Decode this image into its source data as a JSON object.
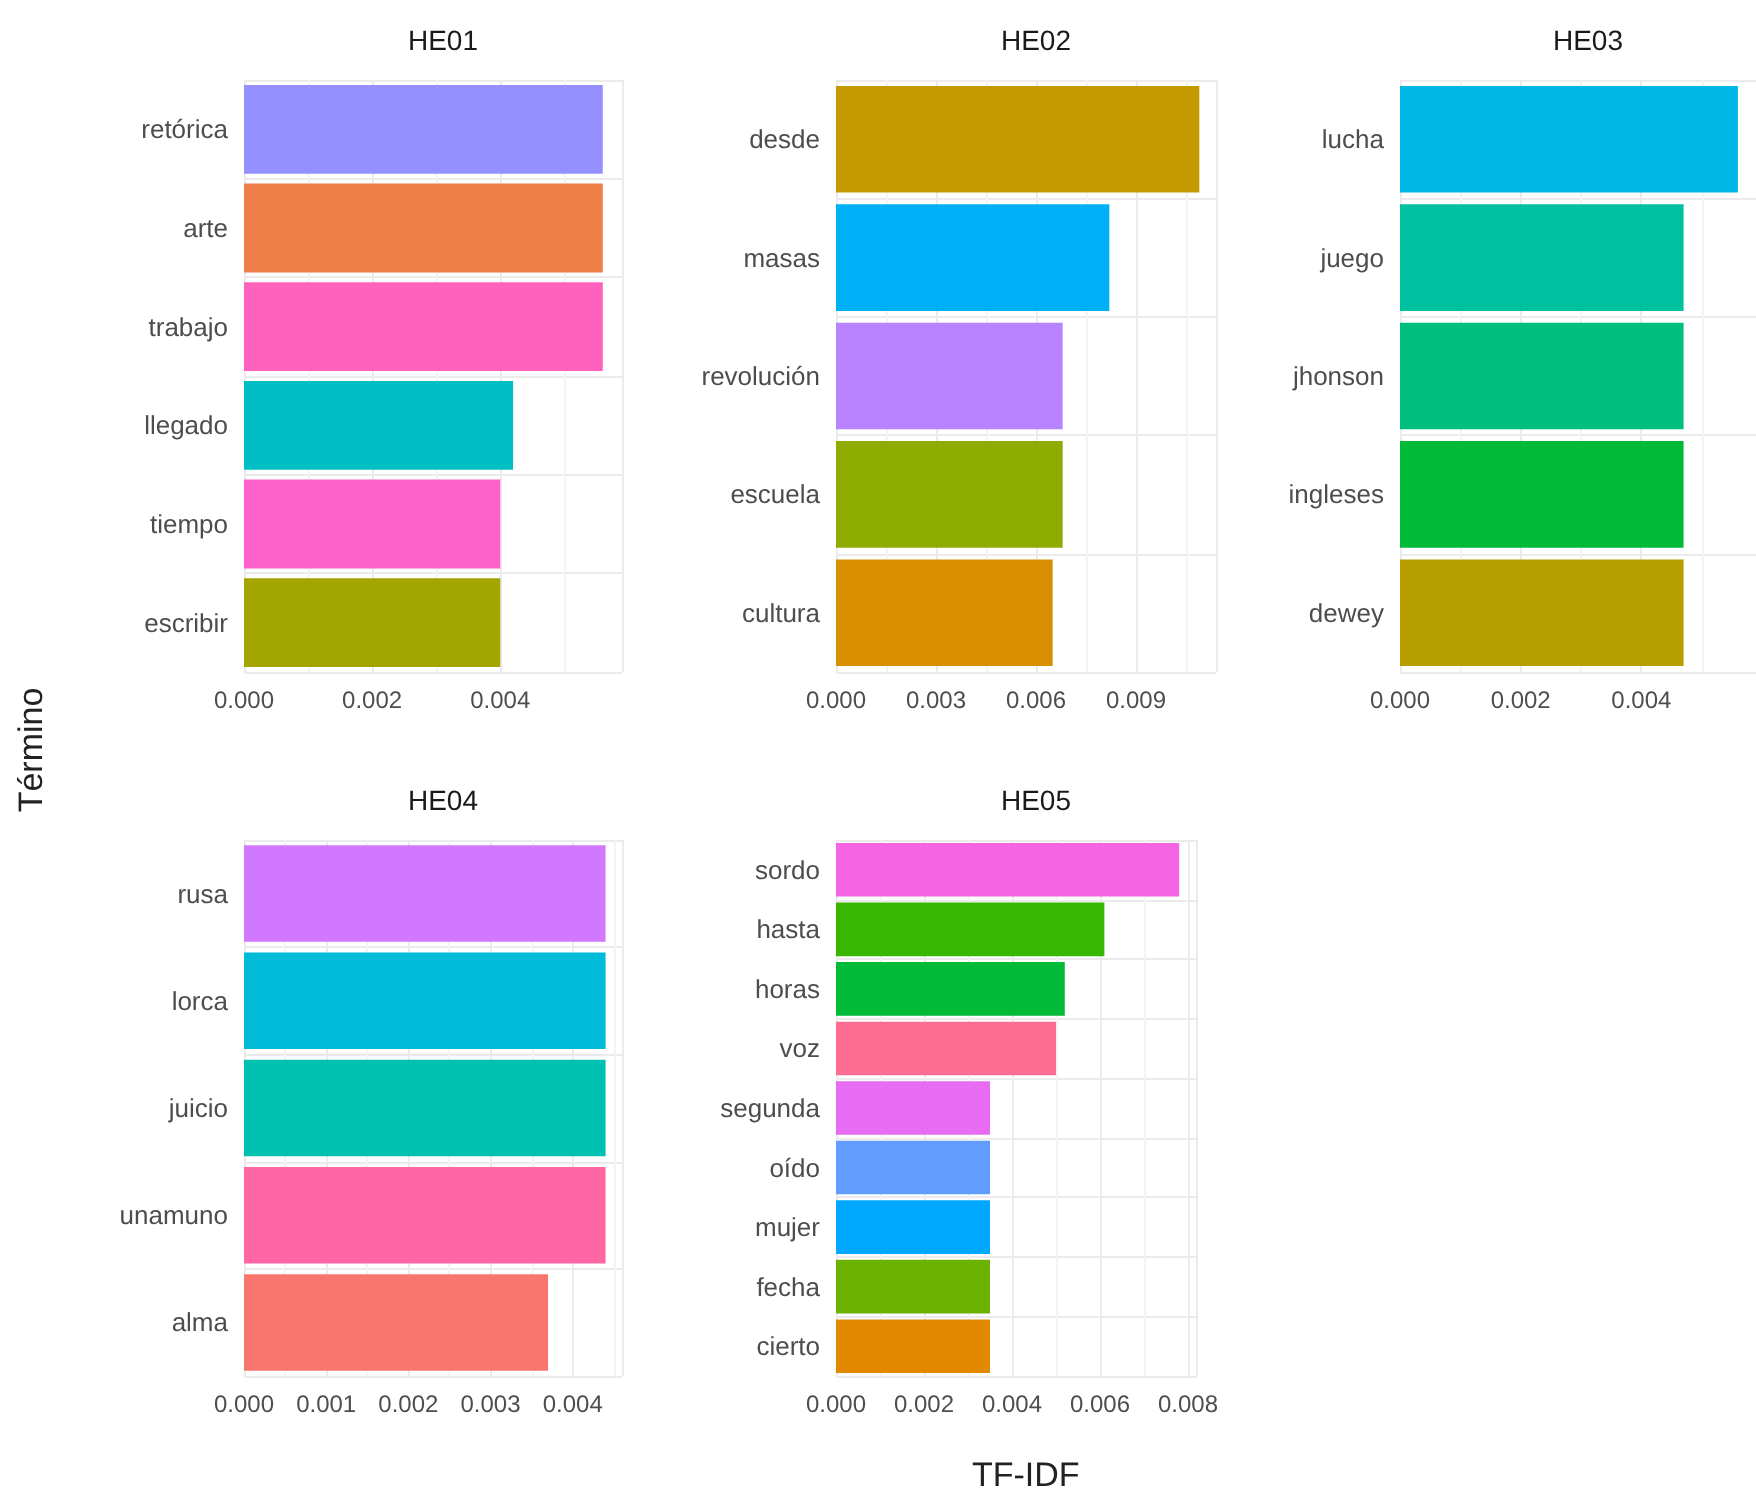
{
  "chart_data": [
    {
      "type": "bar",
      "orientation": "horizontal",
      "title": "HE01",
      "ylabel": "Término",
      "grid": true,
      "categories": [
        "retórica",
        "arte",
        "trabajo",
        "llegado",
        "tiempo",
        "escribir"
      ],
      "values": [
        0.0056,
        0.0056,
        0.0056,
        0.0042,
        0.004,
        0.004
      ],
      "colors": [
        "#9590ff",
        "#ef7f49",
        "#ff62bc",
        "#00bfc4",
        "#ff61cc",
        "#a3a500"
      ],
      "xlim": [
        0,
        0.0059
      ],
      "xticks": [
        {
          "value": 0,
          "label": "0.000"
        },
        {
          "value": 0.002,
          "label": "0.002"
        },
        {
          "value": 0.004,
          "label": "0.004"
        }
      ]
    },
    {
      "type": "bar",
      "orientation": "horizontal",
      "title": "HE02",
      "grid": true,
      "categories": [
        "desde",
        "masas",
        "revolución",
        "escuela",
        "cultura"
      ],
      "values": [
        0.0109,
        0.0082,
        0.0068,
        0.0068,
        0.0065
      ],
      "colors": [
        "#c49a00",
        "#00b0f6",
        "#b983ff",
        "#8eab00",
        "#d89000"
      ],
      "xlim": [
        0,
        0.0114
      ],
      "xticks": [
        {
          "value": 0,
          "label": "0.000"
        },
        {
          "value": 0.003,
          "label": "0.003"
        },
        {
          "value": 0.006,
          "label": "0.006"
        },
        {
          "value": 0.009,
          "label": "0.009"
        }
      ]
    },
    {
      "type": "bar",
      "orientation": "horizontal",
      "title": "HE03",
      "grid": true,
      "categories": [
        "lucha",
        "juego",
        "jhonson",
        "ingleses",
        "dewey"
      ],
      "values": [
        0.0056,
        0.0047,
        0.0047,
        0.0047,
        0.0047
      ],
      "colors": [
        "#00b8e7",
        "#00c19f",
        "#00be7d",
        "#00ba38",
        "#b79f00"
      ],
      "xlim": [
        0,
        0.0059
      ],
      "xticks": [
        {
          "value": 0,
          "label": "0.000"
        },
        {
          "value": 0.002,
          "label": "0.002"
        },
        {
          "value": 0.004,
          "label": "0.004"
        }
      ]
    },
    {
      "type": "bar",
      "orientation": "horizontal",
      "title": "HE04",
      "grid": true,
      "categories": [
        "rusa",
        "lorca",
        "juicio",
        "unamuno",
        "alma"
      ],
      "values": [
        0.0044,
        0.0044,
        0.0044,
        0.0044,
        0.0037
      ],
      "colors": [
        "#d078ff",
        "#00bcd8",
        "#00c0af",
        "#ff67a4",
        "#f8766d"
      ],
      "xlim": [
        0,
        0.0046
      ],
      "xticks": [
        {
          "value": 0,
          "label": "0.000"
        },
        {
          "value": 0.001,
          "label": "0.001"
        },
        {
          "value": 0.002,
          "label": "0.002"
        },
        {
          "value": 0.003,
          "label": "0.003"
        },
        {
          "value": 0.004,
          "label": "0.004"
        }
      ]
    },
    {
      "type": "bar",
      "orientation": "horizontal",
      "title": "HE05",
      "xlabel": "TF-IDF",
      "grid": true,
      "categories": [
        "sordo",
        "hasta",
        "horas",
        "voz",
        "segunda",
        "oído",
        "mujer",
        "fecha",
        "cierto"
      ],
      "values": [
        0.0078,
        0.0061,
        0.0052,
        0.005,
        0.0035,
        0.0035,
        0.0035,
        0.0035,
        0.0035
      ],
      "colors": [
        "#f564e3",
        "#39b600",
        "#00ba38",
        "#ff6c91",
        "#e76bf3",
        "#619cff",
        "#00a9ff",
        "#6bb100",
        "#e38900"
      ],
      "xlim": [
        0,
        0.0082
      ],
      "xticks": [
        {
          "value": 0,
          "label": "0.000"
        },
        {
          "value": 0.002,
          "label": "0.002"
        },
        {
          "value": 0.004,
          "label": "0.004"
        },
        {
          "value": 0.006,
          "label": "0.006"
        },
        {
          "value": 0.008,
          "label": "0.008"
        }
      ]
    }
  ]
}
